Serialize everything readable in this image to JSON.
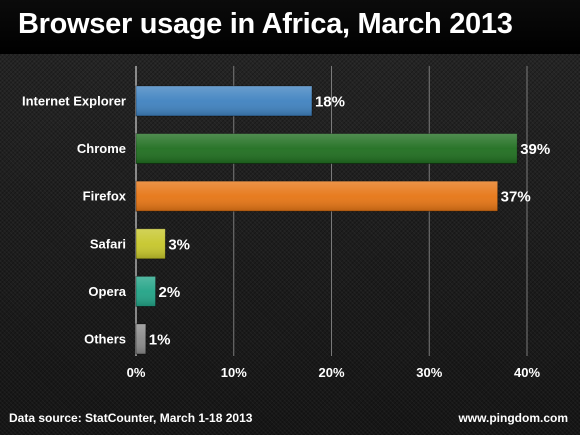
{
  "chart_data": {
    "type": "bar",
    "orientation": "horizontal",
    "title": "Browser usage in Africa, March 2013",
    "categories": [
      "Internet Explorer",
      "Chrome",
      "Firefox",
      "Safari",
      "Opera",
      "Others"
    ],
    "values": [
      18,
      39,
      37,
      3,
      2,
      1
    ],
    "value_labels": [
      "18%",
      "39%",
      "37%",
      "3%",
      "2%",
      "1%"
    ],
    "colors": [
      "#3f82c0",
      "#1f6e1f",
      "#e67514",
      "#c6c62a",
      "#21a386",
      "#8a8a8a"
    ],
    "xlim": [
      0,
      40
    ],
    "x_ticks": [
      0,
      10,
      20,
      30,
      40
    ],
    "x_tick_labels": [
      "0%",
      "10%",
      "20%",
      "30%",
      "40%"
    ],
    "grid": true,
    "legend": "none"
  },
  "footer": {
    "source": "Data source: StatCounter, March 1-18 2013",
    "site": "www.pingdom.com"
  }
}
